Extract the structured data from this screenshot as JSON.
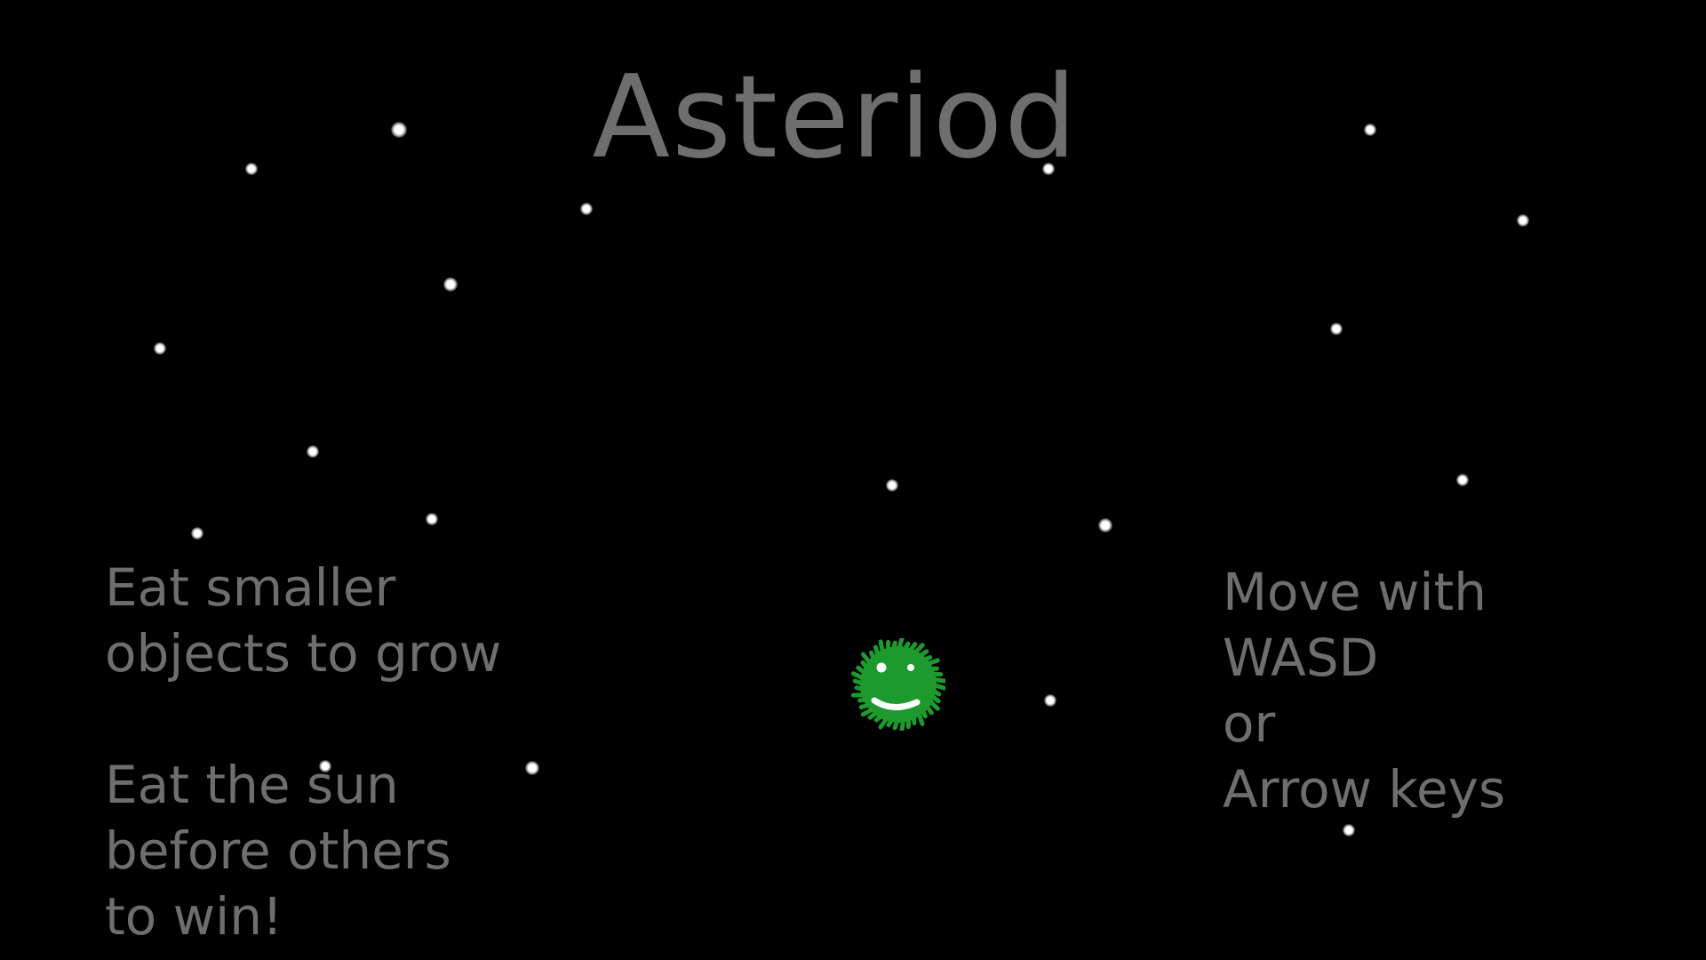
{
  "game": {
    "title": "Asteriod",
    "instructions": {
      "grow": "Eat smaller\nobjects to grow",
      "win": "Eat the sun\nbefore others\nto win!",
      "controls": "Move with\nWASD\nor\nArrow keys"
    },
    "player": {
      "icon": "green-fuzzy-smiley",
      "color": "#1c9a2e"
    }
  },
  "colors": {
    "background": "#000000",
    "text": "#6e6e6e",
    "star": "#ffffff"
  }
}
